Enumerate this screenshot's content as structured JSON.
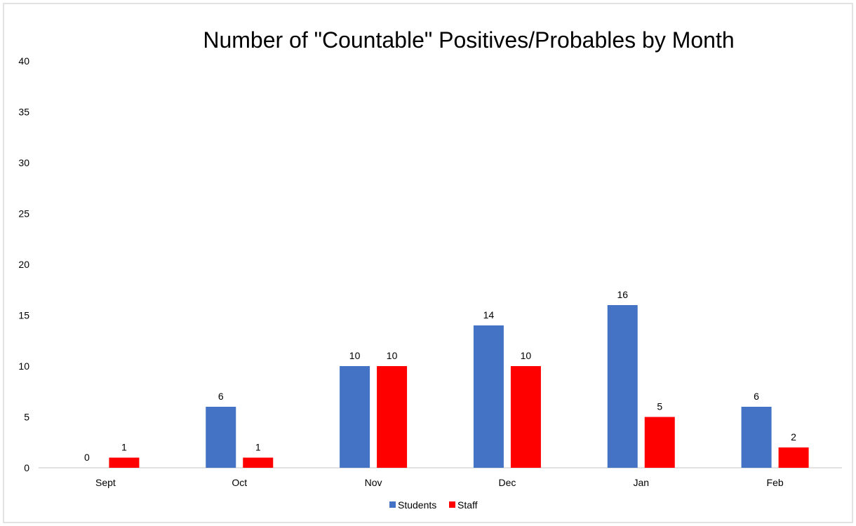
{
  "chart_data": {
    "type": "bar",
    "title": "Number of \"Countable\" Positives/Probables by Month",
    "categories": [
      "Sept",
      "Oct",
      "Nov",
      "Dec",
      "Jan",
      "Feb"
    ],
    "series": [
      {
        "name": "Students",
        "color": "#4472C4",
        "values": [
          0,
          6,
          10,
          14,
          16,
          6
        ]
      },
      {
        "name": "Staff",
        "color": "#FF0000",
        "values": [
          1,
          1,
          10,
          10,
          5,
          2
        ]
      }
    ],
    "ylim": [
      0,
      40
    ],
    "yticks": [
      0,
      5,
      10,
      15,
      20,
      25,
      30,
      35,
      40
    ],
    "xlabel": "",
    "ylabel": "",
    "grid": false,
    "data_labels": true,
    "legend": "bottom"
  }
}
